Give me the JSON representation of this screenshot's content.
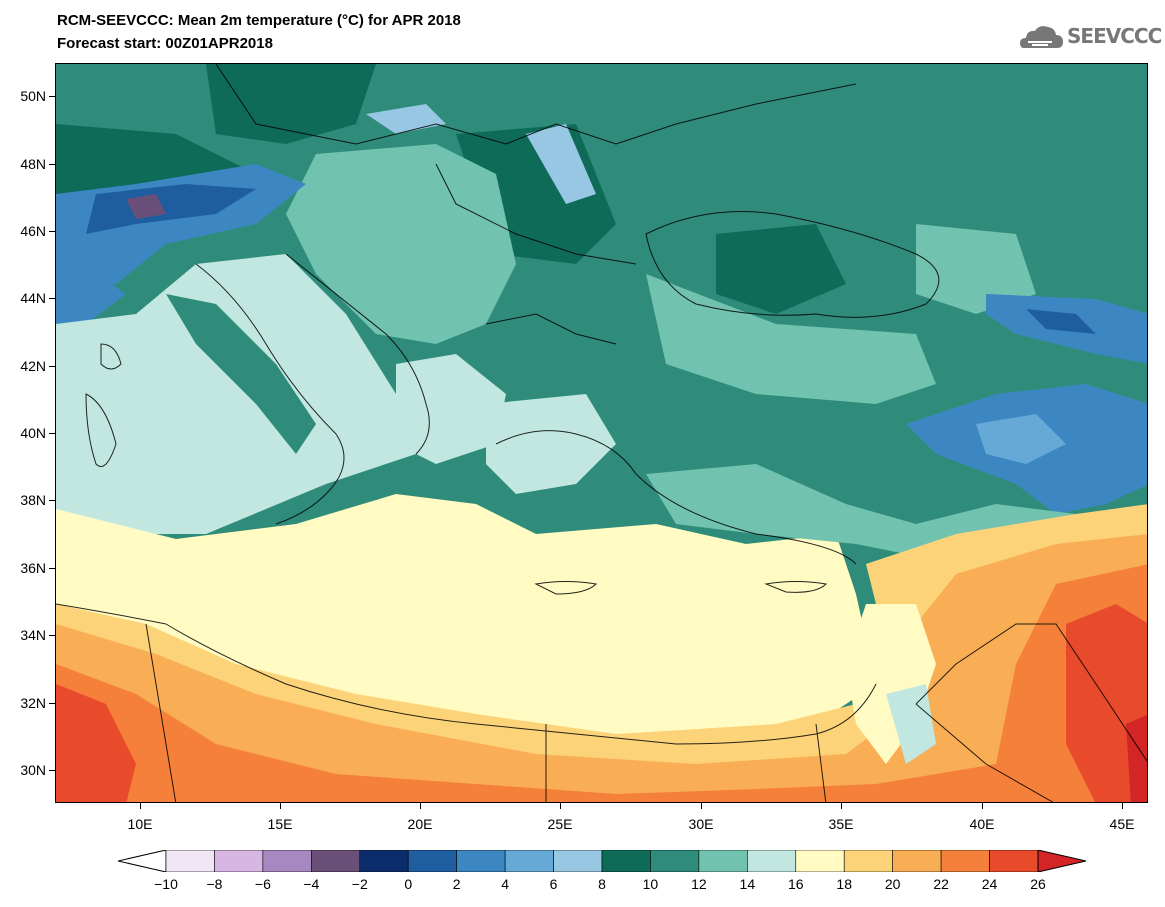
{
  "header": {
    "title": "RCM-SEEVCCC: Mean 2m temperature (°C) for APR 2018",
    "subtitle": "Forecast start: 00Z01APR2018",
    "logo_text": "SEEVCCC"
  },
  "map": {
    "variable": "Mean 2m temperature",
    "units": "°C",
    "lat_labels": [
      "50N",
      "48N",
      "46N",
      "44N",
      "42N",
      "40N",
      "38N",
      "36N",
      "34N",
      "32N",
      "30N"
    ],
    "lon_labels": [
      "10E",
      "15E",
      "20E",
      "25E",
      "30E",
      "35E",
      "40E",
      "45E"
    ]
  },
  "colorbar": {
    "labels": [
      "-10",
      "-8",
      "-6",
      "-4",
      "-2",
      "0",
      "2",
      "4",
      "6",
      "8",
      "10",
      "12",
      "14",
      "16",
      "18",
      "20",
      "22",
      "24",
      "26"
    ],
    "colors": [
      "#ffffff",
      "#f0e6f5",
      "#d8b6e3",
      "#a888c0",
      "#6a4f78",
      "#0b2d6b",
      "#1e5ea0",
      "#3c87c2",
      "#66a9d6",
      "#98c7e4",
      "#0d6b58",
      "#2f8c7a",
      "#72c2b0",
      "#c2e7e0",
      "#fffbc3",
      "#fdd37a",
      "#f9ae55",
      "#f58039",
      "#e84a2c",
      "#d32426"
    ],
    "overflow_low_color": "#ffffff",
    "overflow_high_color": "#d32426"
  }
}
